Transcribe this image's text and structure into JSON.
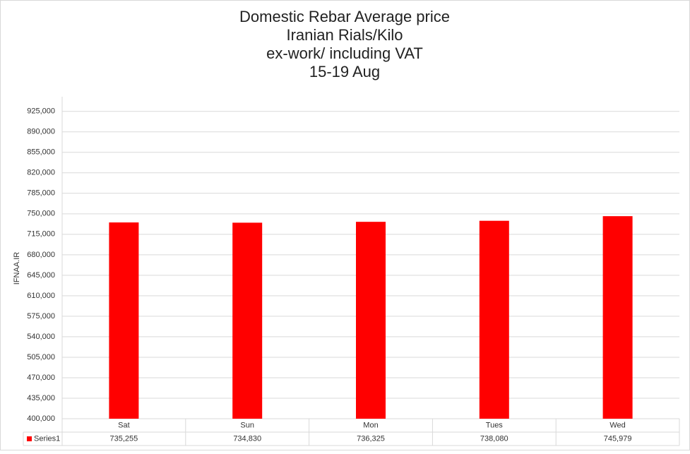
{
  "chart_data": {
    "type": "bar",
    "title": "Domestic Rebar Average price",
    "subtitles": [
      "Iranian Rials/Kilo",
      "ex-work/ including VAT",
      "15-19 Aug"
    ],
    "y_label": "IFNAA.IR",
    "categories": [
      "Sat",
      "Sun",
      "Mon",
      "Tues",
      "Wed"
    ],
    "series": [
      {
        "name": "Series1",
        "color": "#ff0000",
        "values": [
          735255,
          734830,
          736325,
          738080,
          745979
        ],
        "value_labels": [
          "735,255",
          "734,830",
          "736,325",
          "738,080",
          "745,979"
        ]
      }
    ],
    "ylim": [
      400000,
      950000
    ],
    "yticks": [
      {
        "value": 400000,
        "label": "400,000"
      },
      {
        "value": 435000,
        "label": "435,000"
      },
      {
        "value": 470000,
        "label": "470,000"
      },
      {
        "value": 505000,
        "label": "505,000"
      },
      {
        "value": 540000,
        "label": "540,000"
      },
      {
        "value": 575000,
        "label": "575,000"
      },
      {
        "value": 610000,
        "label": "610,000"
      },
      {
        "value": 645000,
        "label": "645,000"
      },
      {
        "value": 680000,
        "label": "680,000"
      },
      {
        "value": 715000,
        "label": "715,000"
      },
      {
        "value": 750000,
        "label": "750,000"
      },
      {
        "value": 785000,
        "label": "785,000"
      },
      {
        "value": 820000,
        "label": "820,000"
      },
      {
        "value": 855000,
        "label": "855,000"
      },
      {
        "value": 890000,
        "label": "890,000"
      },
      {
        "value": 925000,
        "label": "925,000"
      }
    ],
    "grid": true
  }
}
